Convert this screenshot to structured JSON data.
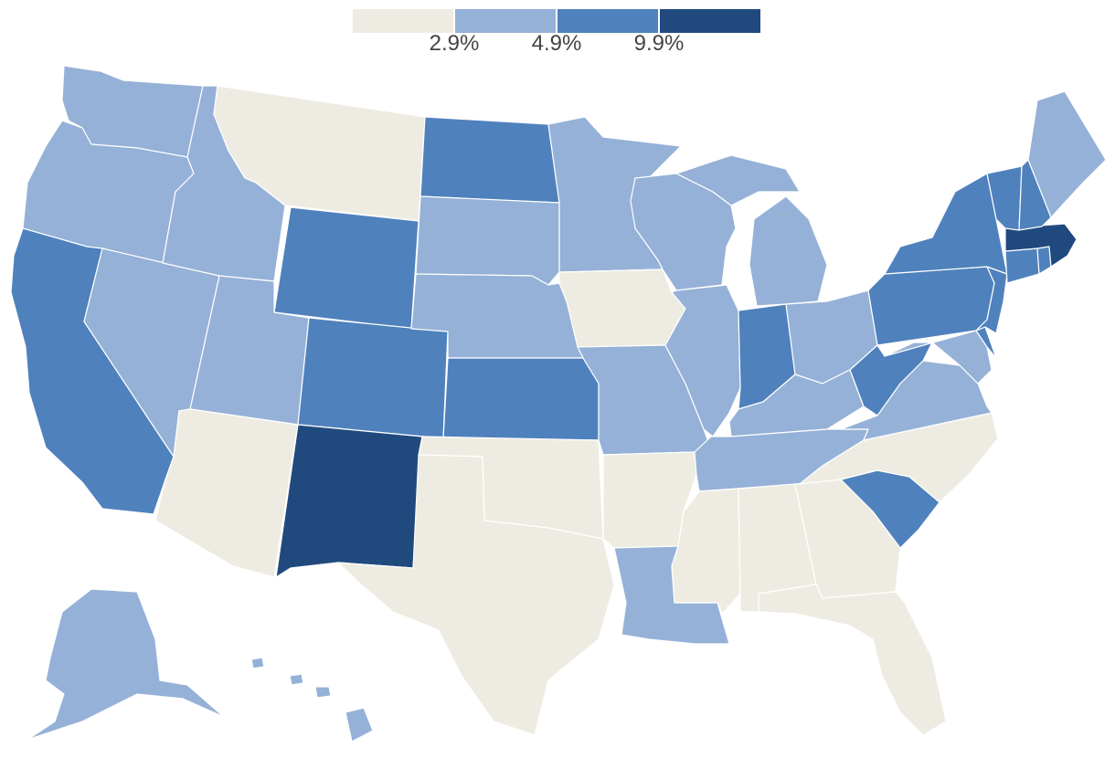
{
  "legend": {
    "colors": [
      "#eeece2",
      "#95b1d7",
      "#4f81bd",
      "#204a7e"
    ],
    "ticks": [
      "2.9%",
      "4.9%",
      "9.9%"
    ]
  },
  "map": {
    "class_colors": [
      "#eeece2",
      "#95b1d7",
      "#4f81bd",
      "#204a7e"
    ],
    "state_classes": {
      "washington": 1,
      "oregon": 1,
      "california": 2,
      "nevada": 1,
      "idaho": 1,
      "montana": 0,
      "wyoming": 2,
      "utah": 1,
      "arizona": 0,
      "colorado": 2,
      "new-mexico": 3,
      "north-dakota": 2,
      "south-dakota": 1,
      "nebraska": 1,
      "kansas": 2,
      "oklahoma": 0,
      "texas": 0,
      "minnesota": 1,
      "iowa": 0,
      "missouri": 1,
      "arkansas": 0,
      "louisiana": 1,
      "wisconsin": 1,
      "illinois": 1,
      "michigan": 1,
      "indiana": 2,
      "ohio": 1,
      "kentucky": 1,
      "tennessee": 1,
      "mississippi": 0,
      "alabama": 0,
      "georgia": 0,
      "florida": 0,
      "south-carolina": 2,
      "north-carolina": 0,
      "virginia": 1,
      "west-virginia": 2,
      "maryland": 1,
      "delaware": 2,
      "new-jersey": 2,
      "pennsylvania": 2,
      "new-york": 2,
      "connecticut": 2,
      "rhode-island": 2,
      "massachusetts": 3,
      "vermont": 2,
      "new-hampshire": 2,
      "maine": 1,
      "alaska": 1,
      "hawaii": 1
    }
  }
}
